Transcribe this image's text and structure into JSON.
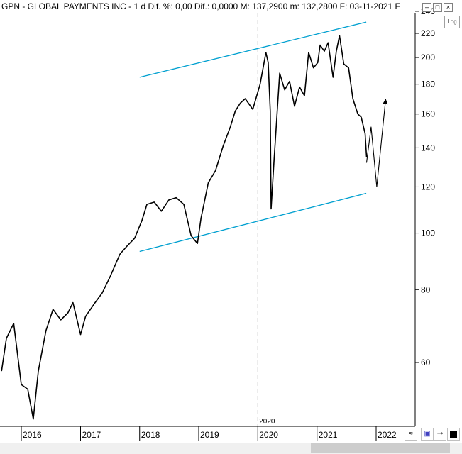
{
  "header": {
    "text": "GPN - GLOBAL PAYMENTS INC -  1 d Dif. %: 0,00  Dif.: 0,0000  M: 137,2900  m: 132,2800  F: 03-11-2021  F"
  },
  "toolbar": {
    "log_label": "Log",
    "window_buttons": [
      "–",
      "□",
      "×"
    ]
  },
  "vline_label": "2020",
  "colors": {
    "price": "#000000",
    "channel": "#00a0d0",
    "grid": "#c0c0c0",
    "vline": "#b0b0b0"
  },
  "icons": [
    "minimize-icon",
    "maximize-icon",
    "close-icon",
    "zigzag-icon",
    "save-icon",
    "pin-icon",
    "color-box-icon"
  ],
  "chart_data": {
    "type": "line",
    "title": "GPN - GLOBAL PAYMENTS INC",
    "scale": "log",
    "y_ticks": [
      60,
      80,
      100,
      120,
      140,
      160,
      180,
      200,
      220,
      240
    ],
    "x_ticks": [
      "2016",
      "2017",
      "2018",
      "2019",
      "2020",
      "2021",
      "2022"
    ],
    "grid": false,
    "series": [
      {
        "name": "GPN",
        "x": [
          "2015-09-01",
          "2015-10-01",
          "2015-11-15",
          "2016-01-01",
          "2016-02-10",
          "2016-03-15",
          "2016-04-15",
          "2016-06-01",
          "2016-07-15",
          "2016-09-01",
          "2016-10-15",
          "2016-11-15",
          "2017-01-01",
          "2017-02-01",
          "2017-04-01",
          "2017-05-15",
          "2017-07-01",
          "2017-09-01",
          "2017-10-15",
          "2017-12-01",
          "2018-01-15",
          "2018-02-15",
          "2018-04-01",
          "2018-05-15",
          "2018-07-01",
          "2018-08-15",
          "2018-10-01",
          "2018-11-15",
          "2018-12-24",
          "2019-01-15",
          "2019-03-01",
          "2019-04-15",
          "2019-06-01",
          "2019-07-15",
          "2019-08-15",
          "2019-09-15",
          "2019-10-15",
          "2019-12-01",
          "2020-01-15",
          "2020-02-20",
          "2020-03-05",
          "2020-03-18",
          "2020-03-23",
          "2020-04-10",
          "2020-05-15",
          "2020-06-15",
          "2020-07-15",
          "2020-08-15",
          "2020-09-15",
          "2020-10-15",
          "2020-11-10",
          "2020-12-10",
          "2021-01-05",
          "2021-01-20",
          "2021-02-15",
          "2021-03-10",
          "2021-04-10",
          "2021-04-30",
          "2021-05-20",
          "2021-06-15",
          "2021-07-15",
          "2021-08-10",
          "2021-09-10",
          "2021-10-01",
          "2021-10-25",
          "2021-11-03"
        ],
        "y": [
          58,
          66,
          70,
          55,
          54,
          48,
          58,
          68,
          74,
          71,
          73,
          76,
          67,
          72,
          76,
          79,
          84,
          92,
          95,
          98,
          105,
          112,
          113,
          109,
          114,
          115,
          112,
          99,
          96,
          106,
          122,
          128,
          141,
          152,
          162,
          167,
          170,
          163,
          180,
          204,
          196,
          162,
          110,
          133,
          188,
          176,
          182,
          165,
          178,
          172,
          204,
          192,
          196,
          210,
          205,
          212,
          185,
          205,
          218,
          195,
          192,
          170,
          160,
          158,
          148,
          135
        ]
      },
      {
        "name": "projection",
        "x": [
          "2021-11-03",
          "2021-12-01",
          "2022-01-05",
          "2022-03-01"
        ],
        "y": [
          132,
          152,
          120,
          170
        ]
      },
      {
        "name": "upper-channel",
        "x": [
          "2018-01-01",
          "2021-11-01"
        ],
        "y": [
          185,
          230
        ]
      },
      {
        "name": "lower-channel",
        "x": [
          "2018-01-01",
          "2021-11-01"
        ],
        "y": [
          93,
          117
        ]
      }
    ],
    "annotations": [
      {
        "type": "vline",
        "x": "2020-01-01",
        "label": "2020"
      }
    ]
  }
}
